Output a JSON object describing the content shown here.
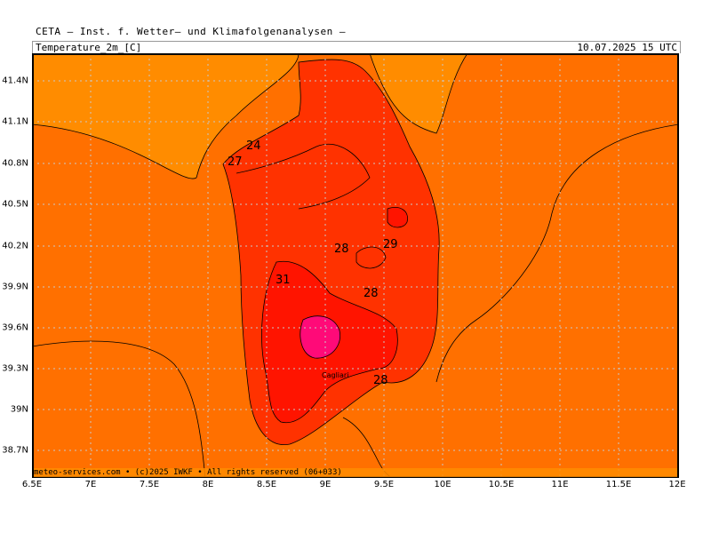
{
  "header": {
    "source_line": "CETA — Inst. f. Wetter— und Klimafolgenanalysen —",
    "field_label": "Temperature_2m_[C]",
    "valid_time": "10.07.2025 15 UTC"
  },
  "footer": {
    "copyright": "meteo-services.com • (c)2025 IWKF • All rights reserved (06+033)"
  },
  "map": {
    "x_axis_ticks": [
      "6.5E",
      "7E",
      "7.5E",
      "8E",
      "8.5E",
      "9E",
      "9.5E",
      "10E",
      "10.5E",
      "11E",
      "11.5E",
      "12E"
    ],
    "y_axis_ticks": [
      "41.4N",
      "41.1N",
      "40.8N",
      "40.5N",
      "40.2N",
      "39.9N",
      "39.6N",
      "39.3N",
      "39N",
      "38.7N"
    ],
    "contour_labels": [
      "24",
      "27",
      "28",
      "29",
      "31",
      "28",
      "28"
    ],
    "city_label": "Cagliari",
    "colors": {
      "sea_24_27": "#ff7000",
      "band_21_24": "#ff8c00",
      "band_27_30": "#ff3200",
      "band_30_33": "#ff1400",
      "band_33_plus": "#ff0a78",
      "contour_line": "#000000",
      "grid_line": "#c8c8c8"
    }
  }
}
